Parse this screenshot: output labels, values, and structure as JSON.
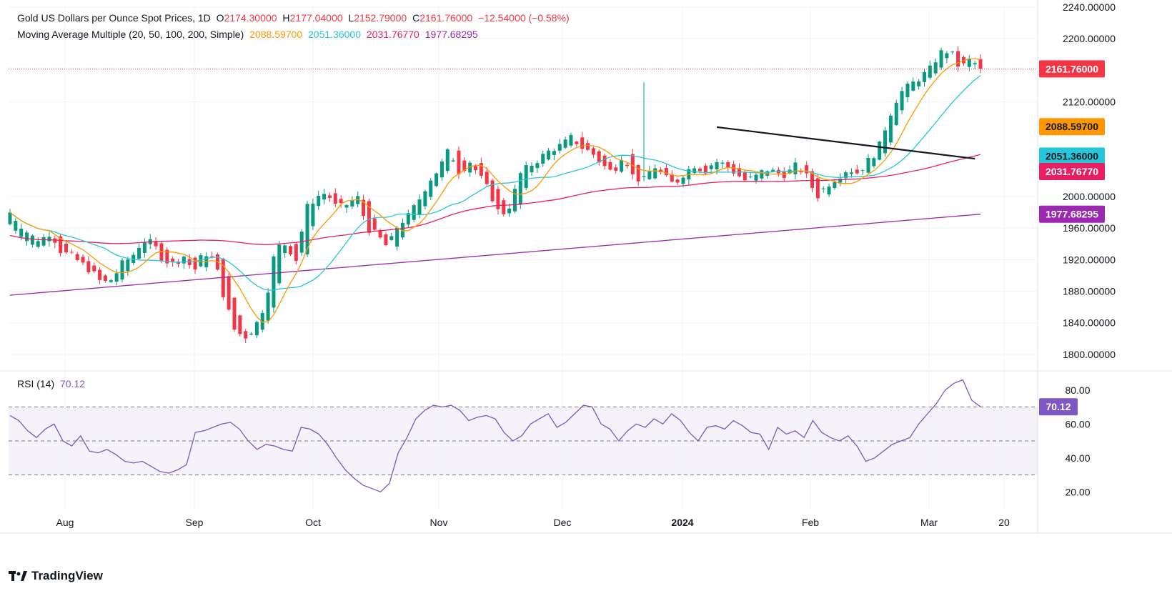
{
  "price_legend": {
    "title": "Gold US Dollars per Ounce Spot Prices, 1D",
    "open_label": "O",
    "open": "2174.30000",
    "high_label": "H",
    "high": "2177.04000",
    "low_label": "L",
    "low": "2152.79000",
    "close_label": "C",
    "close": "2161.76000",
    "change": "−12.54000 (−0.58%)"
  },
  "ma_legend": {
    "title": "Moving Average Multiple (20, 50, 100, 200, Simple)",
    "ma20": "2088.59700",
    "ma50": "2051.36000",
    "ma100": "2031.76770",
    "ma200": "1977.68295"
  },
  "rsi_legend": {
    "title": "RSI (14)",
    "value": "70.12"
  },
  "brand": {
    "name": "TradingView"
  },
  "colors": {
    "up": "#089981",
    "down": "#f23645",
    "ma20": "#ff9800",
    "ma50": "#26c6da",
    "ma100": "#e91e63",
    "ma200": "#9c27b0",
    "rsi": "#7e57c2",
    "trendline": "#131722"
  },
  "chart_data": [
    {
      "type": "candlestick",
      "title": "Gold US Dollars per Ounce Spot Prices, 1D",
      "ylim": [
        1780,
        2240
      ],
      "y_ticks": [
        "2240.00000",
        "2200.00000",
        "2120.00000",
        "2000.00000",
        "1960.00000",
        "1920.00000",
        "1880.00000",
        "1840.00000",
        "1800.00000"
      ],
      "x_ticks": [
        "Aug",
        "Sep",
        "Oct",
        "Nov",
        "Dec",
        "2024",
        "Feb",
        "Mar",
        "20"
      ],
      "price_labels": [
        {
          "name": "last",
          "value": "2161.76000",
          "y": 2161.76
        },
        {
          "name": "ma20",
          "value": "2088.59700",
          "y": 2088.597
        },
        {
          "name": "ma50",
          "value": "2051.36000",
          "y": 2051.36
        },
        {
          "name": "ma100",
          "value": "2031.76770",
          "y": 2031.7677
        },
        {
          "name": "ma200",
          "value": "1977.68295",
          "y": 1977.68295
        }
      ],
      "key_prices": [
        [
          1965,
          1980
        ],
        [
          1950,
          1965
        ],
        [
          1940,
          1950
        ],
        [
          1935,
          1945
        ],
        [
          1945,
          1955
        ],
        [
          1950,
          1930
        ],
        [
          1930,
          1925
        ],
        [
          1925,
          1915
        ],
        [
          1915,
          1905
        ],
        [
          1905,
          1890
        ],
        [
          1890,
          1895
        ],
        [
          1895,
          1915
        ],
        [
          1915,
          1925
        ],
        [
          1925,
          1945
        ],
        [
          1945,
          1940
        ],
        [
          1940,
          1920
        ],
        [
          1920,
          1915
        ],
        [
          1915,
          1925
        ],
        [
          1925,
          1905
        ],
        [
          1905,
          1930
        ],
        [
          1930,
          1920
        ],
        [
          1920,
          1870
        ],
        [
          1870,
          1830
        ],
        [
          1830,
          1822
        ],
        [
          1822,
          1835
        ],
        [
          1835,
          1865
        ],
        [
          1865,
          1935
        ],
        [
          1935,
          1940
        ],
        [
          1940,
          1920
        ],
        [
          1920,
          1985
        ],
        [
          1985,
          2000
        ],
        [
          2000,
          2005
        ],
        [
          2005,
          1985
        ],
        [
          1985,
          1990
        ],
        [
          1990,
          2000
        ],
        [
          2000,
          1960
        ],
        [
          1960,
          1950
        ],
        [
          1950,
          1935
        ],
        [
          1935,
          1965
        ],
        [
          1965,
          1975
        ],
        [
          1975,
          1995
        ],
        [
          1995,
          2020
        ],
        [
          2020,
          2035
        ],
        [
          2035,
          2060
        ],
        [
          2060,
          2030
        ],
        [
          2030,
          2045
        ],
        [
          2045,
          2025
        ],
        [
          2025,
          2005
        ],
        [
          2005,
          1975
        ],
        [
          1975,
          1990
        ],
        [
          1990,
          2030
        ],
        [
          2030,
          2040
        ],
        [
          2040,
          2050
        ],
        [
          2050,
          2060
        ],
        [
          2060,
          2065
        ],
        [
          2065,
          2075
        ],
        [
          2075,
          2062
        ],
        [
          2062,
          2055
        ],
        [
          2055,
          2040
        ],
        [
          2040,
          2030
        ],
        [
          2030,
          2055
        ],
        [
          2055,
          2025
        ],
        [
          2025,
          2020
        ],
        [
          2020,
          2040
        ],
        [
          2040,
          2025
        ],
        [
          2025,
          2015
        ],
        [
          2015,
          2030
        ],
        [
          2030,
          2040
        ],
        [
          2040,
          2032
        ],
        [
          2032,
          2045
        ],
        [
          2045,
          2040
        ],
        [
          2040,
          2030
        ],
        [
          2030,
          2020
        ],
        [
          2020,
          2025
        ],
        [
          2025,
          2035
        ],
        [
          2035,
          2030
        ],
        [
          2030,
          2028
        ],
        [
          2028,
          2040
        ],
        [
          2040,
          2025
        ],
        [
          2025,
          2000
        ],
        [
          2000,
          2015
        ],
        [
          2015,
          2025
        ],
        [
          2025,
          2035
        ],
        [
          2035,
          2030
        ],
        [
          2030,
          2045
        ],
        [
          2045,
          2060
        ],
        [
          2060,
          2100
        ],
        [
          2100,
          2130
        ],
        [
          2130,
          2140
        ],
        [
          2140,
          2150
        ],
        [
          2150,
          2160
        ],
        [
          2160,
          2182
        ],
        [
          2182,
          2185
        ],
        [
          2185,
          2162
        ],
        [
          2162,
          2174
        ],
        [
          2174,
          2161.76
        ]
      ]
    },
    {
      "type": "line",
      "title": "RSI (14)",
      "ylim": [
        10,
        90
      ],
      "y_ticks": [
        "80.00",
        "60.00",
        "40.00",
        "20.00"
      ],
      "bands": [
        30,
        50,
        70
      ],
      "last_value": "70.12",
      "values": [
        65,
        62,
        56,
        52,
        57,
        60,
        50,
        47,
        53,
        44,
        43,
        45,
        42,
        38,
        37,
        38,
        35,
        32,
        31,
        33,
        36,
        55,
        56,
        58,
        60,
        61,
        57,
        50,
        45,
        48,
        47,
        45,
        44,
        58,
        57,
        54,
        48,
        40,
        33,
        28,
        24,
        22,
        20,
        25,
        43,
        52,
        63,
        68,
        71,
        70,
        71,
        68,
        62,
        64,
        65,
        63,
        55,
        50,
        53,
        60,
        63,
        66,
        58,
        61,
        66,
        71,
        70,
        60,
        57,
        50,
        56,
        60,
        58,
        63,
        60,
        66,
        62,
        55,
        50,
        58,
        59,
        57,
        62,
        59,
        55,
        54,
        45,
        58,
        54,
        56,
        52,
        62,
        55,
        52,
        50,
        53,
        47,
        38,
        40,
        44,
        48,
        50,
        52,
        60,
        66,
        72,
        80,
        84,
        86,
        74,
        70.12
      ]
    }
  ]
}
